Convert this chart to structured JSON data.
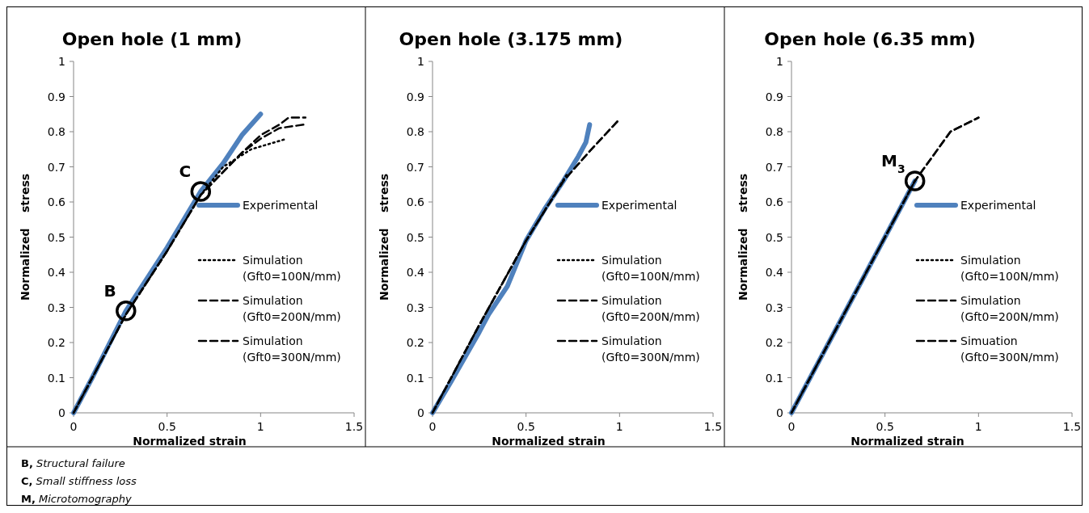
{
  "chart_data": [
    {
      "type": "line",
      "title": "Open hole (1 mm)",
      "xlabel": "Normalized strain",
      "ylabel": "Normalized    stress",
      "xlim": [
        0,
        1.5
      ],
      "ylim": [
        0,
        1
      ],
      "xticks": [
        0,
        0.5,
        1,
        1.5
      ],
      "yticks": [
        0,
        0.1,
        0.2,
        0.3,
        0.4,
        0.5,
        0.6,
        0.7,
        0.8,
        0.9,
        1
      ],
      "grid": false,
      "legend": "right",
      "marker": "none",
      "annotations": [
        {
          "text": "B",
          "x": 0.28,
          "y": 0.29
        },
        {
          "text": "C",
          "x": 0.68,
          "y": 0.63
        },
        "B, Structural failure",
        "C, Small stiffness loss",
        "M, Microtomography"
      ],
      "series": [
        {
          "name": "Experimental",
          "color": "#4f81bd",
          "line_style": "solid",
          "x": [
            0,
            0.1,
            0.28,
            0.5,
            0.68,
            0.8,
            0.9,
            1.0
          ],
          "values": [
            0,
            0.1,
            0.29,
            0.47,
            0.63,
            0.71,
            0.79,
            0.85
          ]
        },
        {
          "name": "Simulation (Gft0=100N/mm)",
          "color": "#000000",
          "line_style": "dotted",
          "x": [
            0,
            0.28,
            0.5,
            0.68,
            0.8,
            0.95,
            1.14
          ],
          "values": [
            0,
            0.28,
            0.46,
            0.62,
            0.7,
            0.75,
            0.78
          ]
        },
        {
          "name": "Simulation (Gft0=200N/mm)",
          "color": "#000000",
          "line_style": "dashed",
          "x": [
            0,
            0.28,
            0.5,
            0.68,
            0.9,
            1.0,
            1.1,
            1.23
          ],
          "values": [
            0,
            0.28,
            0.46,
            0.62,
            0.74,
            0.78,
            0.81,
            0.82
          ]
        },
        {
          "name": "Simulation (Gft0=300N/mm)",
          "color": "#000000",
          "line_style": "dashed",
          "x": [
            0,
            0.28,
            0.5,
            0.68,
            0.9,
            1.0,
            1.1,
            1.15,
            1.24
          ],
          "values": [
            0,
            0.28,
            0.46,
            0.62,
            0.74,
            0.79,
            0.82,
            0.84,
            0.84
          ]
        }
      ]
    },
    {
      "type": "line",
      "title": "Open hole (3.175 mm)",
      "xlabel": "Normalized strain",
      "ylabel": "Normalized    stress",
      "xlim": [
        0,
        1.5
      ],
      "ylim": [
        0,
        1
      ],
      "xticks": [
        0,
        0.5,
        1,
        1.5
      ],
      "yticks": [
        0,
        0.1,
        0.2,
        0.3,
        0.4,
        0.5,
        0.6,
        0.7,
        0.8,
        0.9,
        1
      ],
      "grid": false,
      "legend": "right",
      "marker": "none",
      "series": [
        {
          "name": "Experimental",
          "color": "#4f81bd",
          "line_style": "solid",
          "x": [
            0,
            0.1,
            0.25,
            0.3,
            0.4,
            0.5,
            0.6,
            0.7,
            0.78,
            0.82,
            0.84
          ],
          "values": [
            0,
            0.09,
            0.23,
            0.28,
            0.36,
            0.49,
            0.58,
            0.66,
            0.73,
            0.77,
            0.82
          ]
        },
        {
          "name": "Simulation (Gft0=100N/mm)",
          "color": "#000000",
          "line_style": "dotted",
          "x": [
            0,
            0.25,
            0.5,
            0.72
          ],
          "values": [
            0,
            0.25,
            0.49,
            0.68
          ]
        },
        {
          "name": "Simulation (Gft0=200N/mm)",
          "color": "#000000",
          "line_style": "dashed",
          "x": [
            0,
            0.25,
            0.5,
            0.7,
            0.85,
            0.99
          ],
          "values": [
            0,
            0.25,
            0.49,
            0.66,
            0.75,
            0.83
          ]
        },
        {
          "name": "Simulation (Gft0=300N/mm)",
          "color": "#000000",
          "line_style": "dashed",
          "x": [
            0,
            0.25,
            0.5,
            0.7,
            0.85,
            0.99
          ],
          "values": [
            0,
            0.25,
            0.49,
            0.66,
            0.75,
            0.83
          ]
        }
      ]
    },
    {
      "type": "line",
      "title": "Open hole (6.35 mm)",
      "xlabel": "Normalized strain",
      "ylabel": "Normalized    stress",
      "xlim": [
        0,
        1.5
      ],
      "ylim": [
        0,
        1
      ],
      "xticks": [
        0,
        0.5,
        1,
        1.5
      ],
      "yticks": [
        0,
        0.1,
        0.2,
        0.3,
        0.4,
        0.5,
        0.6,
        0.7,
        0.8,
        0.9,
        1
      ],
      "grid": false,
      "legend": "right",
      "marker": "none",
      "annotations": [
        {
          "text": "M$_{3}$",
          "x": 0.66,
          "y": 0.66
        }
      ],
      "series": [
        {
          "name": "Experimental",
          "color": "#4f81bd",
          "line_style": "solid",
          "x": [
            0,
            0.3,
            0.66
          ],
          "values": [
            0,
            0.3,
            0.66
          ]
        },
        {
          "name": "Simulation (Gft0=100N/mm)",
          "color": "#000000",
          "line_style": "dotted",
          "x": [
            0,
            0.3,
            0.66
          ],
          "values": [
            0,
            0.3,
            0.66
          ]
        },
        {
          "name": "Simulation (Gft0=200N/mm)",
          "color": "#000000",
          "line_style": "dashed",
          "x": [
            0,
            0.3,
            0.66,
            0.85,
            1.0
          ],
          "values": [
            0,
            0.3,
            0.66,
            0.8,
            0.84
          ]
        },
        {
          "name": "Simuation (Gft0=300N/mm)",
          "color": "#000000",
          "line_style": "dashed",
          "x": [
            0,
            0.3,
            0.66,
            0.85,
            1.0
          ],
          "values": [
            0,
            0.3,
            0.66,
            0.8,
            0.84
          ]
        }
      ]
    }
  ]
}
